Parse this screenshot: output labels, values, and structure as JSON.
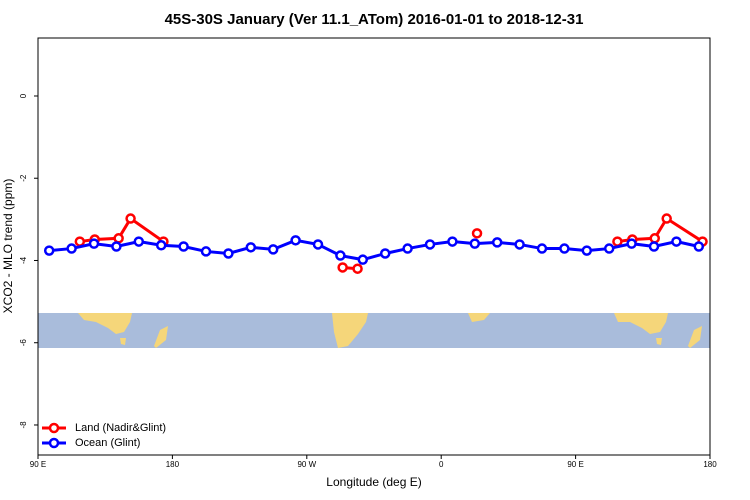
{
  "chart_data": {
    "type": "line",
    "title": "45S-30S January (Ver 11.1_ATom)   2016-01-01 to 2018-12-31",
    "x_label": "Longitude (deg E)",
    "y_label": "XCO2 - MLO trend (ppm)",
    "xlim": [
      90,
      540
    ],
    "ylim": [
      -8.73,
      1.41
    ],
    "xticks": [
      {
        "value": 90,
        "label": "90 E"
      },
      180,
      {
        "value": 270,
        "label": "90 W"
      },
      {
        "value": 360,
        "label": "0"
      },
      {
        "value": 450,
        "label": "90 E"
      },
      {
        "value": 540,
        "label": "180"
      }
    ],
    "yticks": [
      0,
      -2,
      -4,
      -6,
      -8
    ],
    "legend": "bottom-left",
    "series": [
      {
        "name": "Land (Nadir&Glint)",
        "color": "#ff0000",
        "x": [
          118,
          128,
          144,
          152,
          174,
          null,
          294,
          304,
          null,
          384,
          null,
          478,
          488,
          503,
          511,
          535
        ],
        "values": [
          -3.54,
          -3.49,
          -3.46,
          -2.98,
          -3.54,
          null,
          -4.17,
          -4.2,
          null,
          -3.34,
          null,
          -3.54,
          -3.49,
          -3.46,
          -2.98,
          -3.54
        ]
      },
      {
        "name": "Ocean (Glint)",
        "color": "#0000ff",
        "x": [
          97.5,
          112.5,
          127.5,
          142.5,
          157.5,
          172.5,
          187.5,
          202.5,
          217.5,
          232.5,
          247.5,
          262.5,
          277.5,
          292.5,
          307.5,
          322.5,
          337.5,
          352.5,
          367.5,
          382.5,
          397.5,
          412.5,
          427.5,
          442.5,
          457.5,
          472.5,
          487.5,
          502.5,
          517.5,
          532.5
        ],
        "values": [
          -3.76,
          -3.71,
          -3.59,
          -3.66,
          -3.54,
          -3.63,
          -3.66,
          -3.78,
          -3.83,
          -3.68,
          -3.73,
          -3.51,
          -3.61,
          -3.88,
          -3.98,
          -3.83,
          -3.71,
          -3.61,
          -3.54,
          -3.59,
          -3.56,
          -3.61,
          -3.71,
          -3.71,
          -3.76,
          -3.71,
          -3.59,
          -3.66,
          -3.54,
          -3.66
        ]
      }
    ]
  }
}
